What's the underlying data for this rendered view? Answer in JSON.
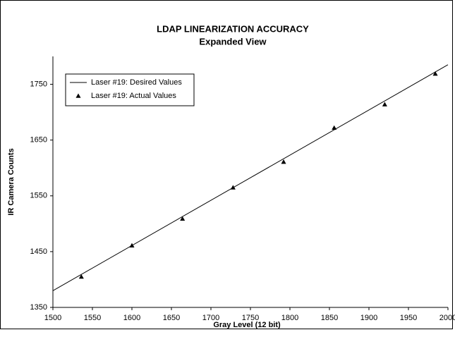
{
  "chart_data": {
    "type": "scatter",
    "title": "LDAP LINEARIZATION ACCURACY",
    "subtitle": "Expanded View",
    "x_label": "Gray Level (12 bit)",
    "y_label": "IR Camera Counts",
    "xlim": [
      1500,
      2000
    ],
    "ylim": [
      1350,
      1800
    ],
    "xticks": [
      1500,
      1550,
      1600,
      1650,
      1700,
      1750,
      1800,
      1850,
      1900,
      1950,
      2000
    ],
    "yticks": [
      1350,
      1450,
      1550,
      1650,
      1750
    ],
    "grid": false,
    "legend": "upper left",
    "series": [
      {
        "name": "Laser #19: Desired Values",
        "color": "#000000",
        "mark": "line",
        "x": [
          1500,
          2000
        ],
        "values": [
          1380,
          1785
        ]
      },
      {
        "name": "Laser #19: Actual Values",
        "color": "#000000",
        "mark": "triangle",
        "x": [
          1536,
          1600,
          1664,
          1728,
          1792,
          1856,
          1920,
          1984
        ],
        "values": [
          1405,
          1461,
          1509,
          1565,
          1611,
          1672,
          1714,
          1769
        ]
      }
    ]
  }
}
